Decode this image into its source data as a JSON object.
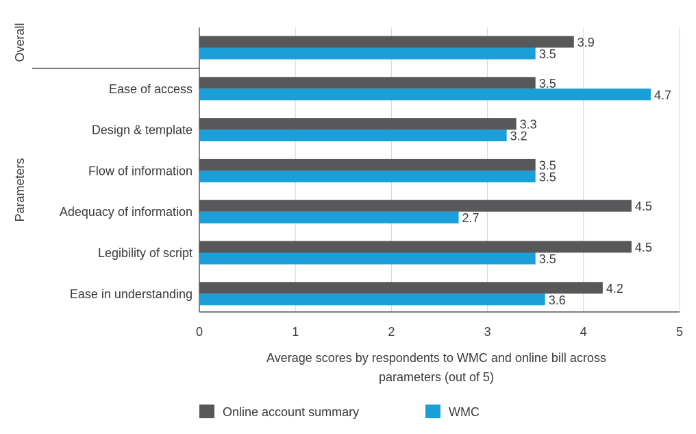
{
  "chart_data": {
    "type": "bar",
    "orientation": "horizontal",
    "title": "",
    "xlabel_lines": [
      "Average scores by respondents to WMC and online bill across",
      "parameters (out of 5)"
    ],
    "xlim": [
      0,
      5
    ],
    "xticks": [
      0,
      1,
      2,
      3,
      4,
      5
    ],
    "grid": true,
    "legend_position": "bottom",
    "groups": [
      {
        "label": "Overall",
        "categories": [
          ""
        ]
      },
      {
        "label": "Parameters",
        "categories": [
          "Ease of access",
          "Design & template",
          "Flow of information",
          "Adequacy of information",
          "Legibility of script",
          "Ease in understanding"
        ]
      }
    ],
    "categories": [
      "",
      "Ease of access",
      "Design & template",
      "Flow of information",
      "Adequacy of information",
      "Legibility of script",
      "Ease in understanding"
    ],
    "series": [
      {
        "name": "Online account summary",
        "color": "#58585a",
        "values": [
          3.9,
          3.5,
          3.3,
          3.5,
          4.5,
          4.5,
          4.2
        ]
      },
      {
        "name": "WMC",
        "color": "#1b9fd9",
        "values": [
          3.5,
          4.7,
          3.2,
          3.5,
          2.7,
          3.5,
          3.6
        ]
      }
    ]
  }
}
